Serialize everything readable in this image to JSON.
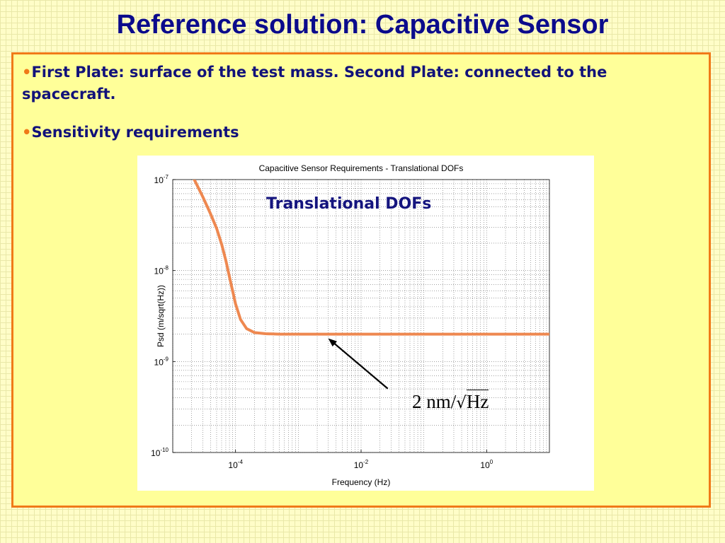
{
  "slide": {
    "title": "Reference solution: Capacitive Sensor",
    "bullets": [
      {
        "dot": "•",
        "text": "First Plate: surface of the test mass. Second Plate: connected to the spacecraft."
      },
      {
        "dot": "•",
        "text": "Sensitivity requirements"
      }
    ]
  },
  "colors": {
    "title": "#0b0b8c",
    "accent": "#f07a18",
    "curve": "#ee8850"
  },
  "chart_data": {
    "type": "line",
    "title": "Capacitive Sensor Requirements - Translational DOFs",
    "xlabel": "Frequency (Hz)",
    "ylabel": "Psd (m/sqrt(Hz))",
    "x_scale": "log",
    "y_scale": "log",
    "xlim": [
      1e-05,
      10
    ],
    "ylim": [
      1e-10,
      1e-07
    ],
    "x_ticks": [
      {
        "value": 0.0001,
        "base": "10",
        "exp": "-4"
      },
      {
        "value": 0.01,
        "base": "10",
        "exp": "-2"
      },
      {
        "value": 1,
        "base": "10",
        "exp": "0"
      }
    ],
    "y_ticks": [
      {
        "value": 1e-10,
        "base": "10",
        "exp": "-10"
      },
      {
        "value": 1e-09,
        "base": "10",
        "exp": "-9"
      },
      {
        "value": 1e-08,
        "base": "10",
        "exp": "-8"
      },
      {
        "value": 1e-07,
        "base": "10",
        "exp": "-7"
      }
    ],
    "grid": true,
    "series": [
      {
        "x": [
          2.2e-05,
          3e-05,
          4e-05,
          5e-05,
          6e-05,
          7e-05,
          8e-05,
          0.0001,
          0.00012,
          0.00015,
          0.0002,
          0.0003,
          0.0005,
          0.001,
          0.01,
          0.1,
          1,
          10
        ],
        "y": [
          1e-07,
          6.5e-08,
          4.2e-08,
          2.9e-08,
          1.95e-08,
          1.3e-08,
          8.5e-09,
          4.3e-09,
          2.9e-09,
          2.3e-09,
          2.08e-09,
          2.02e-09,
          2e-09,
          2e-09,
          2e-09,
          2e-09,
          2e-09,
          2e-09
        ]
      }
    ],
    "annotations": [
      {
        "text": "Translational DOFs"
      },
      {
        "value": "2",
        "unit": "nm/",
        "root": "√",
        "radicand": "Hz",
        "x": 0.003,
        "y": 2e-09
      }
    ]
  }
}
